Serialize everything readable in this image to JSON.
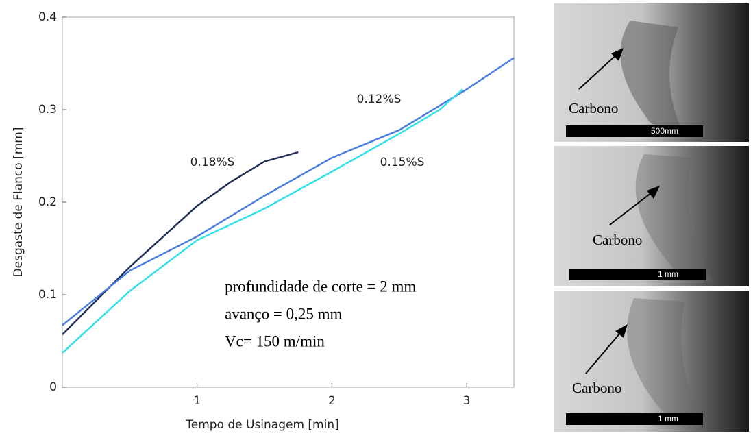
{
  "chart_data": {
    "type": "line",
    "x_label": "Tempo de Usinagem [min]",
    "y_label": "Desgaste de Flanco [mm]",
    "xlim": [
      0,
      3.35
    ],
    "ylim": [
      0,
      0.4
    ],
    "xticks": [
      1,
      2,
      3
    ],
    "yticks": [
      0,
      0.1,
      0.2,
      0.3,
      0.4
    ],
    "series": [
      {
        "name": "0.18%S",
        "color": "#1f2f55",
        "x": [
          0,
          0.5,
          1,
          1.25,
          1.5,
          1.75
        ],
        "values": [
          0.057,
          0.13,
          0.196,
          0.222,
          0.244,
          0.254
        ]
      },
      {
        "name": "0.12%S",
        "color": "#4a7de0",
        "x": [
          0,
          0.5,
          1,
          1.5,
          2,
          2.5,
          3,
          3.35
        ],
        "values": [
          0.067,
          0.126,
          0.163,
          0.207,
          0.248,
          0.278,
          0.322,
          0.356
        ]
      },
      {
        "name": "0.15%S",
        "color": "#33e0e8",
        "x": [
          0,
          0.5,
          1,
          1.5,
          2,
          2.5,
          2.8,
          2.97
        ],
        "values": [
          0.037,
          0.104,
          0.159,
          0.193,
          0.233,
          0.274,
          0.3,
          0.322
        ]
      }
    ],
    "annotations": [
      "profundidade de corte = 2 mm",
      "avanço = 0,25 mm",
      "Vc= 150 m/min"
    ]
  },
  "photos": [
    {
      "label": "Carbono",
      "scale": "500mm"
    },
    {
      "label": "Carbono",
      "scale": "1 mm"
    },
    {
      "label": "Carbono",
      "scale": "1 mm"
    }
  ]
}
